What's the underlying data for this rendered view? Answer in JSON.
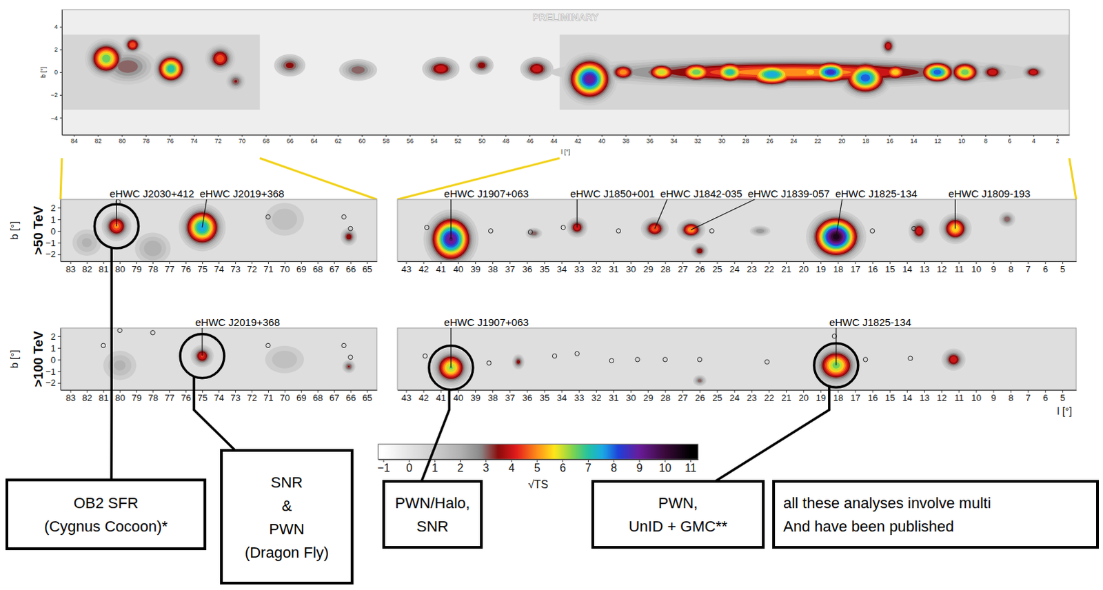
{
  "chart_data": [
    {
      "type": "heatmap",
      "watermark": "PRELIMINARY",
      "x_label": "l [°]",
      "y_label": "b [°]",
      "xlim": [
        85,
        1
      ],
      "ylim": [
        -5.5,
        5.5
      ],
      "xticks": [
        84,
        82,
        80,
        78,
        76,
        74,
        72,
        70,
        68,
        66,
        64,
        62,
        60,
        58,
        56,
        54,
        52,
        50,
        48,
        46,
        44,
        42,
        40,
        38,
        36,
        34,
        32,
        30,
        28,
        26,
        24,
        22,
        20,
        18,
        16,
        14,
        12,
        10,
        8,
        6,
        4,
        2
      ],
      "yticks": [
        {
          "value": -4,
          "label": "−4"
        },
        {
          "value": -2,
          "label": "−2"
        },
        0,
        2,
        4
      ],
      "regions": [
        {
          "l": [
            85,
            68.5
          ],
          "b": [
            -3.3,
            3.3
          ]
        },
        {
          "l": [
            43.5,
            1
          ],
          "b": [
            -3.3,
            3.3
          ]
        }
      ],
      "sources": [
        {
          "l": 81.3,
          "b": 1.2,
          "peak": 7,
          "width": 0.9,
          "height": 0.9
        },
        {
          "l": 79.1,
          "b": 2.4,
          "peak": 5,
          "width": 0.5,
          "height": 0.5
        },
        {
          "l": 79.5,
          "b": 0.5,
          "peak": 3.5,
          "width": 1.5,
          "height": 1
        },
        {
          "l": 75.9,
          "b": 0.3,
          "peak": 7.5,
          "width": 0.8,
          "height": 0.8
        },
        {
          "l": 71.8,
          "b": 1.2,
          "peak": 5,
          "width": 0.7,
          "height": 0.7
        },
        {
          "l": 70.5,
          "b": -0.8,
          "peak": 3.6,
          "width": 0.5,
          "height": 0.5
        },
        {
          "l": 66,
          "b": 0.6,
          "peak": 3.8,
          "width": 0.8,
          "height": 0.6
        },
        {
          "l": 60.3,
          "b": 0.2,
          "peak": 3.5,
          "width": 1,
          "height": 0.6
        },
        {
          "l": 53.4,
          "b": 0.3,
          "peak": 4.5,
          "width": 0.9,
          "height": 0.6
        },
        {
          "l": 50,
          "b": 0.6,
          "peak": 4,
          "width": 0.6,
          "height": 0.5
        },
        {
          "l": 45.4,
          "b": 0.3,
          "peak": 4.5,
          "width": 0.8,
          "height": 0.6
        },
        {
          "l": 24,
          "b": 0,
          "peak": 5.5,
          "width": 11,
          "height": 0.75
        },
        {
          "l": 41,
          "b": -0.6,
          "peak": 9.5,
          "width": 1.1,
          "height": 1.1
        },
        {
          "l": 38.2,
          "b": 0,
          "peak": 5.5,
          "width": 0.7,
          "height": 0.5
        },
        {
          "l": 35,
          "b": 0,
          "peak": 6.5,
          "width": 0.8,
          "height": 0.5
        },
        {
          "l": 32.1,
          "b": 0,
          "peak": 7,
          "width": 0.9,
          "height": 0.55
        },
        {
          "l": 29.3,
          "b": 0,
          "peak": 7.5,
          "width": 0.9,
          "height": 0.6
        },
        {
          "l": 25.8,
          "b": -0.2,
          "peak": 8,
          "width": 1.3,
          "height": 0.65
        },
        {
          "l": 22.6,
          "b": 0,
          "peak": 6,
          "width": 0.8,
          "height": 0.5
        },
        {
          "l": 20.9,
          "b": 0,
          "peak": 9,
          "width": 1,
          "height": 0.6
        },
        {
          "l": 18,
          "b": -0.5,
          "peak": 8.5,
          "width": 1.1,
          "height": 0.9
        },
        {
          "l": 15.5,
          "b": 0,
          "peak": 6,
          "width": 0.7,
          "height": 0.5
        },
        {
          "l": 12,
          "b": 0,
          "peak": 8.5,
          "width": 0.9,
          "height": 0.6
        },
        {
          "l": 9.7,
          "b": 0,
          "peak": 7,
          "width": 0.8,
          "height": 0.6
        },
        {
          "l": 7.4,
          "b": 0,
          "peak": 4.5,
          "width": 0.7,
          "height": 0.5
        },
        {
          "l": 4,
          "b": 0,
          "peak": 4.5,
          "width": 0.6,
          "height": 0.4
        },
        {
          "l": 16.1,
          "b": 2.3,
          "peak": 4.5,
          "width": 0.4,
          "height": 0.5
        }
      ]
    },
    {
      "type": "heatmap",
      "label": ">50 TeV",
      "y_label": "b [°]",
      "xlim": [
        83.6,
        64.4
      ],
      "ylim": [
        -2.6,
        2.7
      ],
      "xticks": [
        83,
        82,
        81,
        80,
        79,
        78,
        77,
        76,
        75,
        74,
        73,
        72,
        71,
        70,
        69,
        68,
        67,
        66,
        65
      ],
      "yticks": [
        2,
        1,
        0,
        {
          "value": -1,
          "label": "−1"
        },
        {
          "value": -2,
          "label": "−2"
        }
      ],
      "sources": [
        {
          "name": "eHWC J2030+412",
          "l": 80.2,
          "b": 0.4,
          "peak": 5.2,
          "width": 0.5,
          "height": 0.7,
          "note": [
            "OB2 SFR",
            "(Cygnus Cocoon)*"
          ]
        },
        {
          "name": "eHWC J2019+368",
          "l": 75,
          "b": 0.3,
          "peak": 8,
          "width": 0.7,
          "height": 1.0
        },
        {
          "l": 66.1,
          "b": -0.5,
          "peak": 4,
          "width": 0.3,
          "height": 0.45
        },
        {
          "l": 78,
          "b": -1.5,
          "peak": 2.5,
          "width": 0.8,
          "height": 1
        },
        {
          "l": 70,
          "b": 1,
          "peak": 2,
          "width": 1,
          "height": 1.2
        },
        {
          "l": 82,
          "b": -1,
          "peak": 2.2,
          "width": 0.7,
          "height": 0.9
        }
      ],
      "markers": [
        {
          "l": 80.1,
          "b": 2.5
        },
        {
          "l": 71,
          "b": 1.2
        },
        {
          "l": 66.4,
          "b": 1.2
        },
        {
          "l": 66,
          "b": 0.2
        }
      ]
    },
    {
      "type": "heatmap",
      "tick_labels": "x",
      "xlim": [
        43.5,
        4.2
      ],
      "ylim": [
        -2.6,
        2.7
      ],
      "xticks": [
        43,
        42,
        41,
        40,
        39,
        38,
        37,
        36,
        35,
        34,
        33,
        32,
        31,
        30,
        29,
        28,
        27,
        26,
        25,
        24,
        23,
        22,
        21,
        20,
        19,
        18,
        17,
        16,
        15,
        14,
        13,
        12,
        11,
        10,
        9,
        8,
        7,
        6,
        5
      ],
      "sources": [
        {
          "name": "eHWC J1907+063",
          "l": 40.4,
          "b": -0.7,
          "peak": 9.6,
          "width": 0.75,
          "height": 1.2
        },
        {
          "name": "eHWC J1850+001",
          "l": 33.1,
          "b": 0.3,
          "peak": 4.5,
          "width": 0.35,
          "height": 0.5
        },
        {
          "name": "eHWC J1842-035",
          "l": 28.6,
          "b": 0.2,
          "peak": 5,
          "width": 0.45,
          "height": 0.55
        },
        {
          "name": "eHWC J1839-057",
          "l": 26.5,
          "b": 0.1,
          "peak": 5.5,
          "width": 0.45,
          "height": 0.5
        },
        {
          "name": "eHWC J1825-134",
          "l": 18.1,
          "b": -0.5,
          "peak": 10.8,
          "width": 0.8,
          "height": 1.05
        },
        {
          "name": "eHWC J1809-193",
          "l": 11.2,
          "b": 0.2,
          "peak": 6,
          "width": 0.5,
          "height": 0.7
        },
        {
          "l": 13.3,
          "b": 0,
          "peak": 4.5,
          "width": 0.35,
          "height": 0.6
        },
        {
          "l": 26,
          "b": -1.7,
          "peak": 4,
          "width": 0.3,
          "height": 0.4
        },
        {
          "l": 35.6,
          "b": -0.2,
          "peak": 3.5,
          "width": 0.3,
          "height": 0.3
        },
        {
          "l": 8.2,
          "b": 1,
          "peak": 3.5,
          "width": 0.3,
          "height": 0.4
        },
        {
          "l": 22.5,
          "b": 0,
          "peak": 3,
          "width": 0.4,
          "height": 0.3
        }
      ],
      "markers": [
        {
          "l": 41.8,
          "b": 0.3
        },
        {
          "l": 38.1,
          "b": 0
        },
        {
          "l": 35.8,
          "b": -0.1
        },
        {
          "l": 33.9,
          "b": 0.3
        },
        {
          "l": 30.7,
          "b": 0
        },
        {
          "l": 25.3,
          "b": 0
        },
        {
          "l": 16,
          "b": 0
        },
        {
          "l": 13.6,
          "b": 0.2
        }
      ]
    },
    {
      "type": "heatmap",
      "label": ">100 TeV",
      "y_label": "b [°]",
      "xlim": [
        83.6,
        64.4
      ],
      "ylim": [
        -2.6,
        2.7
      ],
      "xticks": [
        83,
        82,
        81,
        80,
        79,
        78,
        77,
        76,
        75,
        74,
        73,
        72,
        71,
        70,
        69,
        68,
        67,
        66,
        65
      ],
      "yticks": [
        2,
        1,
        0,
        {
          "value": -1,
          "label": "−1"
        },
        {
          "value": -2,
          "label": "−2"
        }
      ],
      "sources": [
        {
          "name": "eHWC J2019+368",
          "l": 75,
          "b": 0.3,
          "peak": 4.6,
          "width": 0.4,
          "height": 0.55,
          "note": [
            "SNR",
            "&",
            "PWN",
            "(Dragon Fly)"
          ]
        },
        {
          "l": 66.1,
          "b": -0.6,
          "peak": 3.6,
          "width": 0.25,
          "height": 0.35
        },
        {
          "l": 80,
          "b": -0.5,
          "peak": 2.2,
          "width": 0.8,
          "height": 1
        },
        {
          "l": 70,
          "b": 0,
          "peak": 2,
          "width": 1,
          "height": 1
        }
      ],
      "markers": [
        {
          "l": 80,
          "b": 2.5
        },
        {
          "l": 78,
          "b": 2.3
        },
        {
          "l": 81,
          "b": 1.2
        },
        {
          "l": 71,
          "b": 1.2
        },
        {
          "l": 66.4,
          "b": 1.2
        },
        {
          "l": 66,
          "b": 0.2
        }
      ]
    },
    {
      "type": "heatmap",
      "tick_labels": "x",
      "x_label": "l [°]",
      "xlim": [
        43.5,
        4.2
      ],
      "ylim": [
        -2.6,
        2.7
      ],
      "xticks": [
        43,
        42,
        41,
        40,
        39,
        38,
        37,
        36,
        35,
        34,
        33,
        32,
        31,
        30,
        29,
        28,
        27,
        26,
        25,
        24,
        23,
        22,
        21,
        20,
        19,
        18,
        17,
        16,
        15,
        14,
        13,
        12,
        11,
        10,
        9,
        8,
        7,
        6,
        5
      ],
      "sources": [
        {
          "name": "eHWC J1907+063",
          "l": 40.4,
          "b": -0.7,
          "peak": 6.6,
          "width": 0.6,
          "height": 0.85,
          "note": [
            "PWN/Halo,",
            "SNR"
          ]
        },
        {
          "name": "eHWC J1825-134",
          "l": 18.1,
          "b": -0.5,
          "peak": 6.8,
          "width": 0.7,
          "height": 0.9,
          "note": [
            "PWN,",
            "UnID + GMC**"
          ]
        },
        {
          "l": 11.3,
          "b": 0,
          "peak": 4.5,
          "width": 0.4,
          "height": 0.55
        },
        {
          "l": 36.5,
          "b": -0.2,
          "peak": 3.8,
          "width": 0.22,
          "height": 0.4
        },
        {
          "l": 26,
          "b": -1.8,
          "peak": 3.3,
          "width": 0.25,
          "height": 0.3
        }
      ],
      "markers": [
        {
          "l": 41.9,
          "b": 0.3
        },
        {
          "l": 38.2,
          "b": -0.3
        },
        {
          "l": 34.4,
          "b": 0.3
        },
        {
          "l": 33.1,
          "b": 0.5
        },
        {
          "l": 31.1,
          "b": -0.1
        },
        {
          "l": 29.6,
          "b": 0
        },
        {
          "l": 28,
          "b": 0
        },
        {
          "l": 26,
          "b": 0
        },
        {
          "l": 22.1,
          "b": -0.2
        },
        {
          "l": 16.4,
          "b": 0
        },
        {
          "l": 13.8,
          "b": 0.1
        },
        {
          "l": 18.2,
          "b": 2
        }
      ]
    }
  ],
  "colorbar": {
    "range": [
      -1.2,
      11.3
    ],
    "ticks": [
      {
        "value": -1,
        "label": "−1"
      },
      0,
      1,
      2,
      3,
      4,
      5,
      6,
      7,
      8,
      9,
      10,
      11
    ],
    "label": "√TS"
  },
  "note": [
    "all these analyses involve multi",
    "And have been published"
  ]
}
